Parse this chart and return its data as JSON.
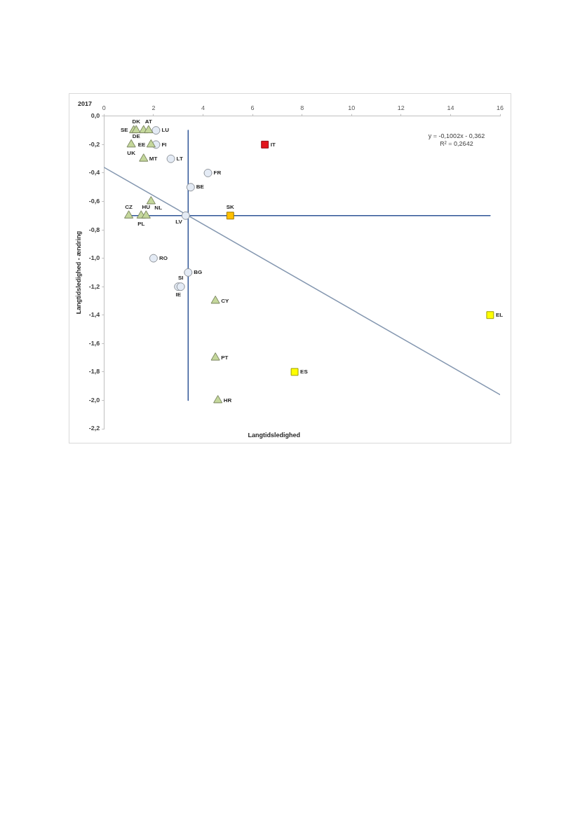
{
  "chart_data": {
    "type": "scatter",
    "title": "2017",
    "xlabel": "Langtidsledighed",
    "ylabel": "Langtidsledighed - ændring",
    "xlim": [
      0,
      16
    ],
    "xticks": [
      0,
      2,
      4,
      6,
      8,
      10,
      12,
      14,
      16
    ],
    "ylim": [
      -2.2,
      0
    ],
    "yticks": [
      {
        "value": 0,
        "label": "0,0"
      },
      {
        "value": -0.2,
        "label": "-0,2"
      },
      {
        "value": -0.4,
        "label": "-0,4"
      },
      {
        "value": -0.6,
        "label": "-0,6"
      },
      {
        "value": -0.8,
        "label": "-0,8"
      },
      {
        "value": -1.0,
        "label": "-1,0"
      },
      {
        "value": -1.2,
        "label": "-1,2"
      },
      {
        "value": -1.4,
        "label": "-1,4"
      },
      {
        "value": -1.6,
        "label": "-1,6"
      },
      {
        "value": -1.8,
        "label": "-1,8"
      },
      {
        "value": -2.0,
        "label": "-2,0"
      },
      {
        "value": -2.2,
        "label": "-2,2"
      }
    ],
    "series": [
      {
        "type": "line",
        "color": "#2f5597",
        "marker": "none",
        "x": [
          3.4,
          3.4
        ],
        "values": [
          -0.1,
          -2.0
        ]
      },
      {
        "type": "line",
        "color": "#2f5597",
        "marker": "none",
        "x": [
          1.0,
          15.6
        ],
        "values": [
          -0.7,
          -0.7
        ]
      },
      {
        "type": "line",
        "color": "#8497b0",
        "marker": "none",
        "x": [
          0,
          16
        ],
        "values": [
          -0.36,
          -1.96
        ]
      },
      {
        "color": "#c4d79b",
        "marker": "triangle",
        "x": [
          1.2,
          1.3,
          1.6,
          1.8,
          1.1,
          1.9,
          1.6,
          1.9,
          1.0,
          1.5,
          1.7,
          4.5,
          4.5,
          4.6
        ],
        "values": [
          -0.1,
          -0.1,
          -0.1,
          -0.1,
          -0.2,
          -0.2,
          -0.3,
          -0.6,
          -0.7,
          -0.7,
          -0.7,
          -1.3,
          -1.7,
          -2.0
        ]
      },
      {
        "color": "#e4ebf5",
        "marker": "circle",
        "x": [
          2.1,
          2.1,
          2.7,
          4.2,
          3.5,
          3.3,
          2.0,
          3.4,
          3.0,
          3.1
        ],
        "values": [
          -0.1,
          -0.2,
          -0.3,
          -0.4,
          -0.5,
          -0.7,
          -1.0,
          -1.1,
          -1.2,
          -1.2
        ]
      },
      {
        "color": "#e3141c",
        "marker": "square",
        "x": [
          6.5
        ],
        "values": [
          -0.2
        ]
      },
      {
        "color": "#ffc000",
        "marker": "square",
        "x": [
          5.1
        ],
        "values": [
          -0.7
        ]
      },
      {
        "color": "#ffff00",
        "marker": "square",
        "x": [
          7.7,
          15.6
        ],
        "values": [
          -1.8,
          -1.4
        ]
      }
    ],
    "annotations": [
      "y = -0,1002x - 0,362",
      "R² = 0,2642",
      {
        "text": "SE",
        "x": 1.2,
        "y": -0.1
      },
      {
        "text": "DK",
        "x": 1.3,
        "y": -0.1
      },
      {
        "text": "DE",
        "x": 1.6,
        "y": -0.1
      },
      {
        "text": "AT",
        "x": 1.8,
        "y": -0.1
      },
      {
        "text": "LU",
        "x": 2.1,
        "y": -0.1
      },
      {
        "text": "UK",
        "x": 1.1,
        "y": -0.2
      },
      {
        "text": "EE",
        "x": 1.9,
        "y": -0.2
      },
      {
        "text": "FI",
        "x": 2.1,
        "y": -0.2
      },
      {
        "text": "MT",
        "x": 1.6,
        "y": -0.3
      },
      {
        "text": "LT",
        "x": 2.7,
        "y": -0.3
      },
      {
        "text": "IT",
        "x": 6.5,
        "y": -0.2
      },
      {
        "text": "FR",
        "x": 4.2,
        "y": -0.4
      },
      {
        "text": "BE",
        "x": 3.5,
        "y": -0.5
      },
      {
        "text": "NL",
        "x": 1.9,
        "y": -0.6
      },
      {
        "text": "CZ",
        "x": 1.0,
        "y": -0.7
      },
      {
        "text": "PL",
        "x": 1.5,
        "y": -0.7
      },
      {
        "text": "HU",
        "x": 1.7,
        "y": -0.7
      },
      {
        "text": "LV",
        "x": 3.3,
        "y": -0.7
      },
      {
        "text": "SK",
        "x": 5.1,
        "y": -0.7
      },
      {
        "text": "RO",
        "x": 2.0,
        "y": -1.0
      },
      {
        "text": "BG",
        "x": 3.4,
        "y": -1.1
      },
      {
        "text": "IE",
        "x": 3.0,
        "y": -1.2
      },
      {
        "text": "SI",
        "x": 3.1,
        "y": -1.2
      },
      {
        "text": "CY",
        "x": 4.5,
        "y": -1.3
      },
      {
        "text": "EL",
        "x": 15.6,
        "y": -1.4
      },
      {
        "text": "PT",
        "x": 4.5,
        "y": -1.7
      },
      {
        "text": "ES",
        "x": 7.7,
        "y": -1.8
      },
      {
        "text": "HR",
        "x": 4.6,
        "y": -2.0
      }
    ]
  }
}
